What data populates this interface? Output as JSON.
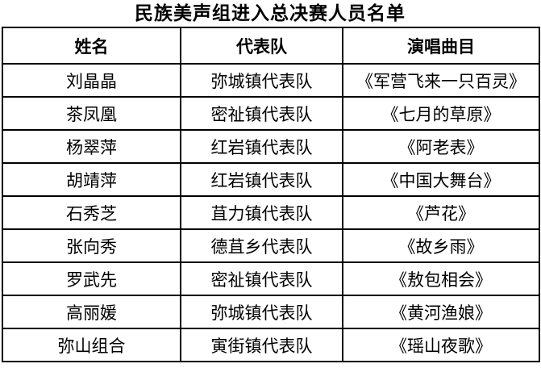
{
  "title": "民族美声组进入总决赛人员名单",
  "table": {
    "headers": [
      "姓名",
      "代表队",
      "演唱曲目"
    ],
    "rows": [
      [
        "刘晶晶",
        "弥城镇代表队",
        "《军营飞来一只百灵》"
      ],
      [
        "茶凤凰",
        "密祉镇代表队",
        "《七月的草原》"
      ],
      [
        "杨翠萍",
        "红岩镇代表队",
        "《阿老表》"
      ],
      [
        "胡靖萍",
        "红岩镇代表队",
        "《中国大舞台》"
      ],
      [
        "石秀芝",
        "苴力镇代表队",
        "《芦花》"
      ],
      [
        "张向秀",
        "德苴乡代表队",
        "《故乡雨》"
      ],
      [
        "罗武先",
        "密祉镇代表队",
        "《敖包相会》"
      ],
      [
        "高丽媛",
        "弥城镇代表队",
        "《黄河渔娘》"
      ],
      [
        "弥山组合",
        "寅街镇代表队",
        "《瑶山夜歌》"
      ]
    ]
  },
  "colors": {
    "text": "#000000",
    "border": "#000000",
    "background": "#ffffff"
  }
}
